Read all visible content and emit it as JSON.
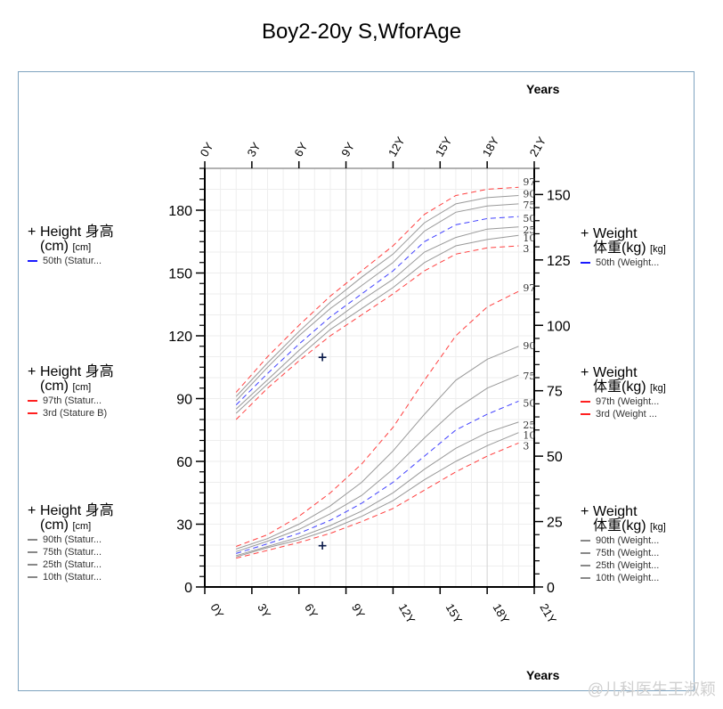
{
  "title": "Boy2-20y S,WforAge",
  "x_axis_label": "Years",
  "watermark": "@儿科医生王淑颖",
  "legends": {
    "left": [
      {
        "title": "Height 身高",
        "unit": "(cm)",
        "unit_small": "[cm]",
        "items": [
          {
            "label": "50th (Statur...",
            "color": "#1a1aff",
            "style": "dashed"
          }
        ]
      },
      {
        "title": "Height 身高",
        "unit": "(cm)",
        "unit_small": "[cm]",
        "items": [
          {
            "label": "97th (Statur...",
            "color": "#ff2020",
            "style": "dashed"
          },
          {
            "label": "3rd (Stature B)",
            "color": "#ff2020",
            "style": "dashed"
          }
        ]
      },
      {
        "title": "Height 身高",
        "unit": "(cm)",
        "unit_small": "[cm]",
        "items": [
          {
            "label": "90th (Statur...",
            "color": "#888888",
            "style": "solid"
          },
          {
            "label": "75th (Statur...",
            "color": "#888888",
            "style": "solid"
          },
          {
            "label": "25th (Statur...",
            "color": "#888888",
            "style": "solid"
          },
          {
            "label": "10th (Statur...",
            "color": "#888888",
            "style": "solid"
          }
        ]
      }
    ],
    "right": [
      {
        "title": "Weight",
        "unit": "体重(kg)",
        "unit_small": "[kg]",
        "items": [
          {
            "label": "50th (Weight...",
            "color": "#1a1aff",
            "style": "dashed"
          }
        ]
      },
      {
        "title": "Weight",
        "unit": "体重(kg)",
        "unit_small": "[kg]",
        "items": [
          {
            "label": "97th (Weight...",
            "color": "#ff2020",
            "style": "dashed"
          },
          {
            "label": "3rd (Weight ...",
            "color": "#ff2020",
            "style": "dashed"
          }
        ]
      },
      {
        "title": "Weight",
        "unit": "体重(kg)",
        "unit_small": "[kg]",
        "items": [
          {
            "label": "90th (Weight...",
            "color": "#888888",
            "style": "solid"
          },
          {
            "label": "75th (Weight...",
            "color": "#888888",
            "style": "solid"
          },
          {
            "label": "25th (Weight...",
            "color": "#888888",
            "style": "solid"
          },
          {
            "label": "10th (Weight...",
            "color": "#888888",
            "style": "solid"
          }
        ]
      }
    ]
  },
  "chart_data": {
    "type": "line",
    "title": "Boy2-20y S,WforAge",
    "xlabel": "Years",
    "xlim": [
      0,
      21
    ],
    "x_ticks": [
      "0Y",
      "3Y",
      "6Y",
      "9Y",
      "12Y",
      "15Y",
      "18Y",
      "21Y"
    ],
    "y_left": {
      "label": "Height 身高 (cm)",
      "lim": [
        0,
        200
      ],
      "ticks": [
        0,
        30,
        60,
        90,
        120,
        150,
        180
      ]
    },
    "y_right": {
      "label": "Weight 体重(kg)",
      "lim": [
        0,
        160
      ],
      "ticks": [
        0,
        25,
        50,
        75,
        100,
        125,
        150
      ]
    },
    "grid": true,
    "x": [
      2,
      4,
      6,
      8,
      10,
      12,
      14,
      16,
      18,
      20
    ],
    "stature_series": [
      {
        "name": "97",
        "values": [
          93,
          110,
          125,
          139,
          151,
          163,
          178,
          187,
          190,
          191
        ],
        "color": "#ff4040",
        "style": "dashed"
      },
      {
        "name": "90",
        "values": [
          91,
          107,
          122,
          136,
          148,
          159,
          174,
          183,
          186,
          187
        ],
        "color": "#999999",
        "style": "solid"
      },
      {
        "name": "75",
        "values": [
          89,
          105,
          120,
          133,
          144,
          155,
          170,
          179,
          182,
          183
        ],
        "color": "#999999",
        "style": "solid"
      },
      {
        "name": "50",
        "values": [
          87,
          102,
          116,
          129,
          140,
          151,
          165,
          173,
          176,
          177
        ],
        "color": "#4040ff",
        "style": "dashed"
      },
      {
        "name": "25",
        "values": [
          85,
          99,
          113,
          126,
          137,
          147,
          160,
          167,
          171,
          172
        ],
        "color": "#999999",
        "style": "solid"
      },
      {
        "name": "10",
        "values": [
          83,
          97,
          110,
          123,
          133,
          143,
          155,
          163,
          166,
          168
        ],
        "color": "#999999",
        "style": "solid"
      },
      {
        "name": "3",
        "values": [
          80,
          95,
          108,
          120,
          130,
          140,
          151,
          159,
          162,
          163
        ],
        "color": "#ff4040",
        "style": "dashed"
      }
    ],
    "weight_series": [
      {
        "name": "97",
        "values": [
          15.5,
          20,
          27,
          36,
          47,
          61,
          79,
          96,
          107,
          113
        ],
        "color": "#ff4040",
        "style": "dashed"
      },
      {
        "name": "90",
        "values": [
          14.5,
          18.5,
          24,
          31,
          40,
          52,
          66,
          79,
          87,
          92
        ],
        "color": "#999999",
        "style": "solid"
      },
      {
        "name": "75",
        "values": [
          13.5,
          17.5,
          22,
          28,
          35,
          45,
          57,
          68,
          76,
          81
        ],
        "color": "#999999",
        "style": "solid"
      },
      {
        "name": "50",
        "values": [
          12.8,
          16.5,
          20.5,
          25.5,
          32,
          40,
          50,
          60,
          66,
          71
        ],
        "color": "#4040ff",
        "style": "dashed"
      },
      {
        "name": "25",
        "values": [
          12,
          15.5,
          19,
          23.5,
          29,
          36,
          45,
          53,
          59,
          63
        ],
        "color": "#999999",
        "style": "solid"
      },
      {
        "name": "10",
        "values": [
          11.5,
          15,
          18,
          22,
          27,
          33,
          41,
          48,
          54,
          59
        ],
        "color": "#999999",
        "style": "solid"
      },
      {
        "name": "3",
        "values": [
          11,
          14,
          17,
          20.5,
          25,
          30,
          37,
          44,
          50,
          55
        ],
        "color": "#ff4040",
        "style": "dashed"
      }
    ],
    "markers": [
      {
        "x": 7.5,
        "axis": "stature",
        "value": 110
      },
      {
        "x": 7.5,
        "axis": "weight",
        "value": 16
      }
    ]
  }
}
